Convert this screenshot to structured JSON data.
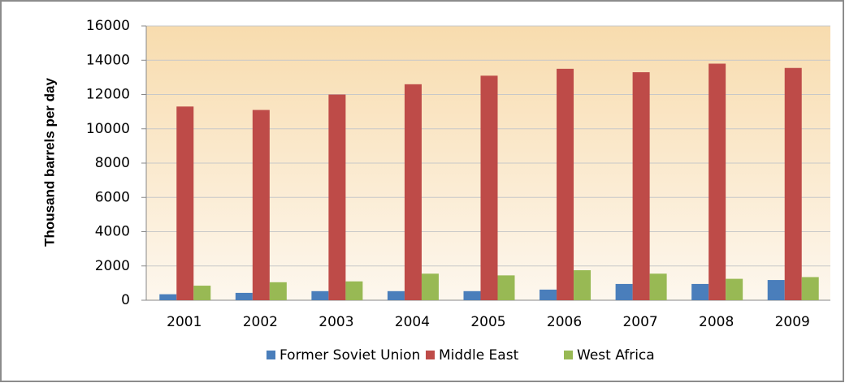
{
  "chart_data": {
    "type": "bar",
    "y_label": "Thousand barrels per day",
    "categories": [
      "2001",
      "2002",
      "2003",
      "2004",
      "2005",
      "2006",
      "2007",
      "2008",
      "2009"
    ],
    "series": [
      {
        "name": "Former Soviet Union",
        "color": "#4a7ebb",
        "values": [
          350,
          430,
          530,
          530,
          530,
          620,
          950,
          950,
          1180
        ]
      },
      {
        "name": "Middle East",
        "color": "#be4b48",
        "values": [
          11300,
          11100,
          12000,
          12600,
          13100,
          13500,
          13300,
          13800,
          13550
        ]
      },
      {
        "name": "West Africa",
        "color": "#98b954",
        "values": [
          850,
          1050,
          1100,
          1550,
          1450,
          1750,
          1550,
          1250,
          1350
        ]
      }
    ],
    "ylim": [
      0,
      16000
    ],
    "yticks": [
      0,
      2000,
      4000,
      6000,
      8000,
      10000,
      12000,
      14000,
      16000
    ],
    "grid": true,
    "legend": "bottom"
  }
}
